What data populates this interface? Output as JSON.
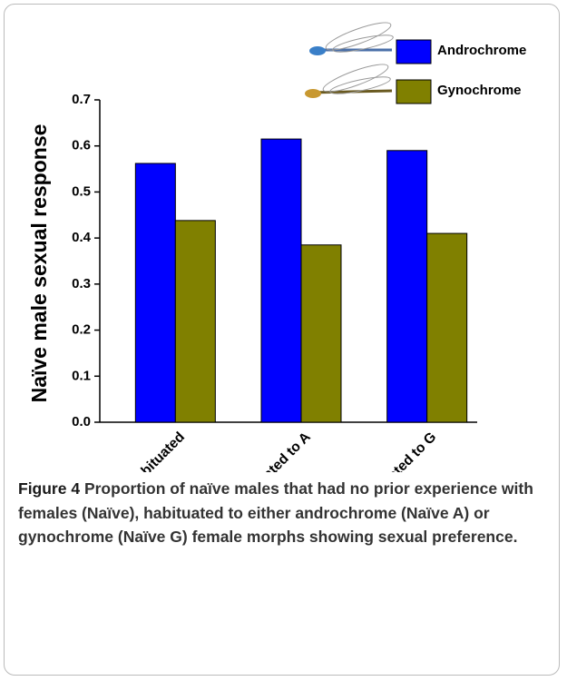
{
  "chart_data": {
    "type": "bar",
    "categories": [
      "Naïve not habituated",
      "Naïve habituated to A",
      "Naïve habituated to G"
    ],
    "series": [
      {
        "name": "Androchrome",
        "color": "#0000ff",
        "values": [
          0.562,
          0.615,
          0.59
        ]
      },
      {
        "name": "Gynochrome",
        "color": "#808000",
        "values": [
          0.438,
          0.385,
          0.41
        ]
      }
    ],
    "ylabel": "Naïve male sexual response",
    "ylim": [
      0,
      0.7
    ],
    "yticks": [
      {
        "value": 0,
        "label": "0.0"
      },
      0.1,
      0.2,
      0.3,
      0.4,
      0.5,
      0.6,
      0.7
    ],
    "legend": "top-right"
  },
  "figure": {
    "label": "Figure 4",
    "caption": "Proportion of naïve males that had no prior experience with females (Naïve), habituated to either androchrome (Naïve A) or gynochrome (Naïve G) female morphs showing sexual preference."
  }
}
